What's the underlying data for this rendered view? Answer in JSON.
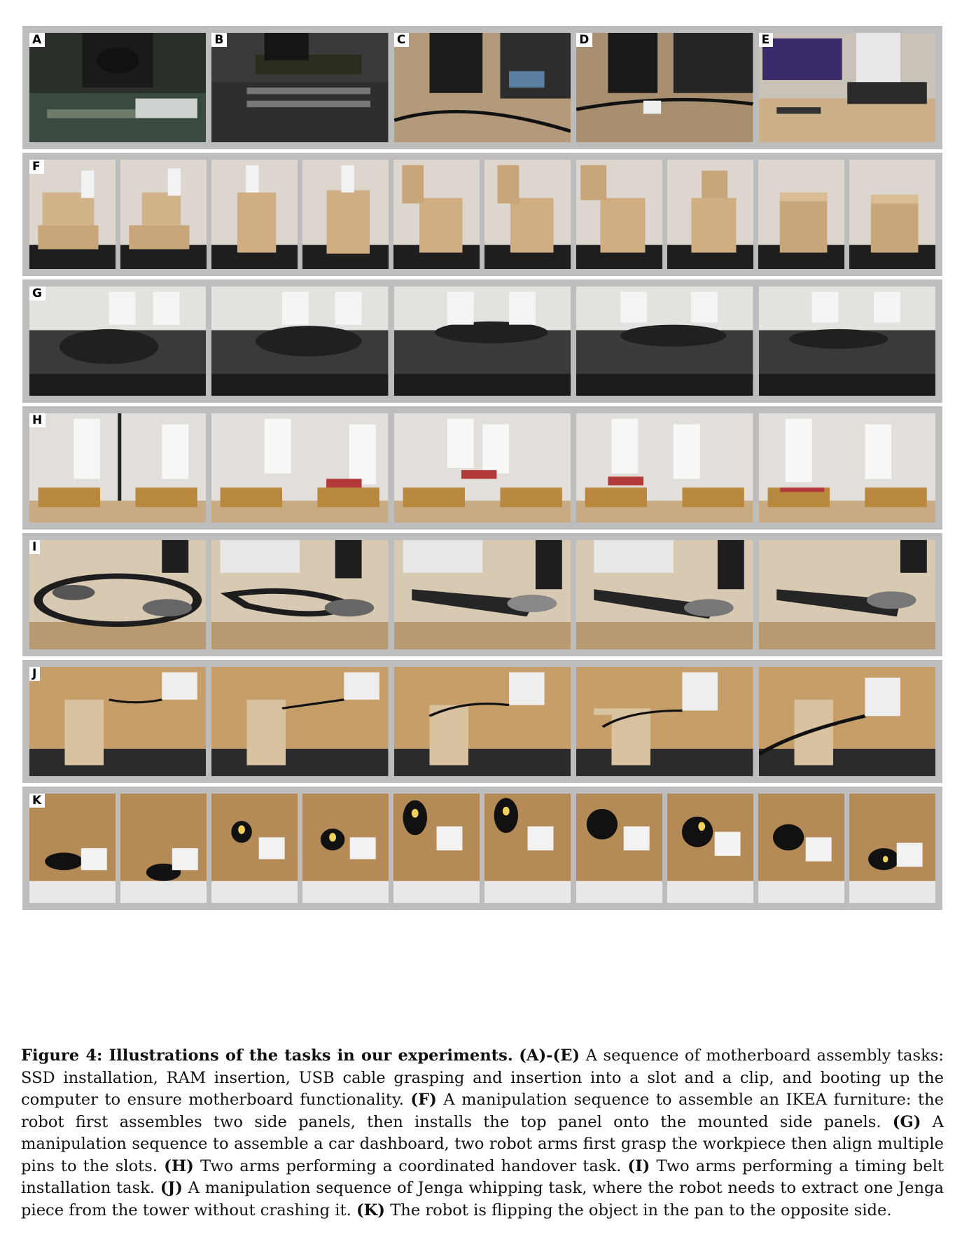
{
  "rows": [
    {
      "id": "A-E",
      "labels": [
        "A",
        "B",
        "C",
        "D",
        "E"
      ],
      "frames": 5
    },
    {
      "id": "F",
      "labels": [
        "F"
      ],
      "frames": 10
    },
    {
      "id": "G",
      "labels": [
        "G"
      ],
      "frames": 5
    },
    {
      "id": "H",
      "labels": [
        "H"
      ],
      "frames": 5
    },
    {
      "id": "I",
      "labels": [
        "I"
      ],
      "frames": 5
    },
    {
      "id": "J",
      "labels": [
        "J"
      ],
      "frames": 5
    },
    {
      "id": "K",
      "labels": [
        "K"
      ],
      "frames": 10
    }
  ],
  "caption": {
    "figure_label": "Figure 4: Illustrations of the tasks in our experiments.",
    "parts": [
      {
        "tag": "(A)-(E)",
        "text": " A sequence of motherboard assembly tasks: SSD installation, RAM insertion, USB cable grasping and insertion into a slot and a clip, and booting up the computer to ensure motherboard functionality. "
      },
      {
        "tag": "(F)",
        "text": " A manipulation sequence to assemble an IKEA furniture: the robot first assembles two side panels, then installs the top panel onto the mounted side panels. "
      },
      {
        "tag": "(G)",
        "text": " A manipulation sequence to assemble a car dashboard, two robot arms first grasp the workpiece then align multiple pins to the slots. "
      },
      {
        "tag": "(H)",
        "text": " Two arms performing a coordinated handover task. "
      },
      {
        "tag": "(I)",
        "text": " Two arms performing a timing belt installation task. "
      },
      {
        "tag": "(J)",
        "text": " A manipulation sequence of Jenga whipping task, where the robot needs to extract one Jenga piece from the tower without crashing it. "
      },
      {
        "tag": "(K)",
        "text": " The robot is flipping the object in the pan to the opposite side."
      }
    ]
  }
}
